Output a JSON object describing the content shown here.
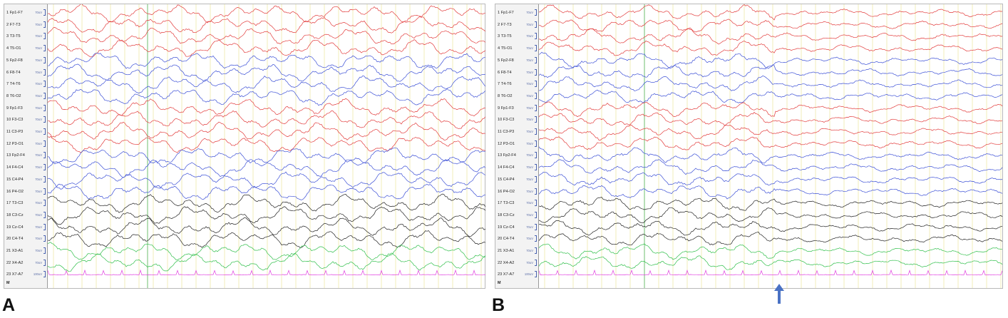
{
  "panels": [
    {
      "letter": "A",
      "channels": [
        {
          "num": "1",
          "label": "Fp1-F7",
          "scale": "70uV"
        },
        {
          "num": "2",
          "label": "F7-T3",
          "scale": "70uV"
        },
        {
          "num": "3",
          "label": "T3-T5",
          "scale": "70uV"
        },
        {
          "num": "4",
          "label": "T5-O1",
          "scale": "70uV"
        },
        {
          "num": "5",
          "label": "Fp2-F8",
          "scale": "70uV"
        },
        {
          "num": "6",
          "label": "F8-T4",
          "scale": "70uV"
        },
        {
          "num": "7",
          "label": "T4-T6",
          "scale": "70uV"
        },
        {
          "num": "8",
          "label": "T6-O2",
          "scale": "70uV"
        },
        {
          "num": "9",
          "label": "Fp1-F3",
          "scale": "70uV"
        },
        {
          "num": "10",
          "label": "F3-C3",
          "scale": "70uV"
        },
        {
          "num": "11",
          "label": "C3-P3",
          "scale": "70uV"
        },
        {
          "num": "12",
          "label": "P3-O1",
          "scale": "70uV"
        },
        {
          "num": "13",
          "label": "Fp2-F4",
          "scale": "70uV"
        },
        {
          "num": "14",
          "label": "F4-C4",
          "scale": "70uV"
        },
        {
          "num": "15",
          "label": "C4-P4",
          "scale": "70uV"
        },
        {
          "num": "16",
          "label": "P4-O2",
          "scale": "70uV"
        },
        {
          "num": "17",
          "label": "T3-C3",
          "scale": "70uV"
        },
        {
          "num": "18",
          "label": "C3-Cz",
          "scale": "70uV"
        },
        {
          "num": "19",
          "label": "Cz-C4",
          "scale": "70uV"
        },
        {
          "num": "20",
          "label": "C4-T4",
          "scale": "70uV"
        },
        {
          "num": "21",
          "label": "X3-A1",
          "scale": "70uV"
        },
        {
          "num": "22",
          "label": "X4-A2",
          "scale": "70uV"
        },
        {
          "num": "23",
          "label": "X7-A7",
          "scale": "100uV"
        }
      ],
      "footer": "M"
    },
    {
      "letter": "B",
      "channels": [
        {
          "num": "1",
          "label": "Fp1-F7",
          "scale": "70uV"
        },
        {
          "num": "2",
          "label": "F7-T3",
          "scale": "70uV"
        },
        {
          "num": "3",
          "label": "T3-T5",
          "scale": "70uV"
        },
        {
          "num": "4",
          "label": "T5-O1",
          "scale": "70uV"
        },
        {
          "num": "5",
          "label": "Fp2-F8",
          "scale": "70uV"
        },
        {
          "num": "6",
          "label": "F8-T4",
          "scale": "70uV"
        },
        {
          "num": "7",
          "label": "T4-T6",
          "scale": "70uV"
        },
        {
          "num": "8",
          "label": "T6-O2",
          "scale": "70uV"
        },
        {
          "num": "9",
          "label": "Fp1-F3",
          "scale": "70uV"
        },
        {
          "num": "10",
          "label": "F3-C3",
          "scale": "70uV"
        },
        {
          "num": "11",
          "label": "C3-P3",
          "scale": "70uV"
        },
        {
          "num": "12",
          "label": "P3-O1",
          "scale": "70uV"
        },
        {
          "num": "13",
          "label": "Fp2-F4",
          "scale": "70uV"
        },
        {
          "num": "14",
          "label": "F4-C4",
          "scale": "70uV"
        },
        {
          "num": "15",
          "label": "C4-P4",
          "scale": "70uV"
        },
        {
          "num": "16",
          "label": "P4-O2",
          "scale": "70uV"
        },
        {
          "num": "17",
          "label": "T3-C3",
          "scale": "70uV"
        },
        {
          "num": "18",
          "label": "C3-Cz",
          "scale": "70uV"
        },
        {
          "num": "19",
          "label": "Cz-C4",
          "scale": "70uV"
        },
        {
          "num": "20",
          "label": "C4-T4",
          "scale": "70uV"
        },
        {
          "num": "21",
          "label": "X3-A1",
          "scale": "70uV"
        },
        {
          "num": "22",
          "label": "X4-A2",
          "scale": "70uV"
        },
        {
          "num": "23",
          "label": "X7-A7",
          "scale": "100uV"
        }
      ],
      "footer": "M"
    }
  ],
  "colors": {
    "left_chain": "#e23b3b",
    "right_chain": "#3b4fd6",
    "central_chain": "#222222",
    "reference": "#2fbf4a",
    "ecg": "#e040e0",
    "grid": "#efe9a8",
    "marker": "#6fbf6f",
    "arrow": "#4a72c4"
  },
  "icons": {
    "event_marker": "up-arrow-icon"
  }
}
